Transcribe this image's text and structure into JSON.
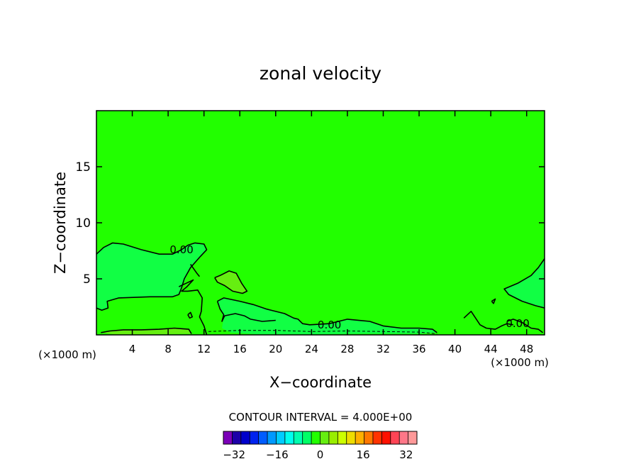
{
  "chart_data": {
    "type": "contour",
    "title": "zonal velocity",
    "xlabel": "X−coordinate",
    "ylabel": "Z−coordinate",
    "x_unit_left": "(×1000 m)",
    "x_unit_right": "(×1000 m)",
    "xlim": [
      0,
      50
    ],
    "ylim": [
      0,
      20
    ],
    "x_ticks": [
      4,
      8,
      12,
      16,
      20,
      24,
      28,
      32,
      36,
      40,
      44,
      48
    ],
    "x_tick_labels": [
      "4",
      "8",
      "12",
      "16",
      "20",
      "24",
      "28",
      "32",
      "36",
      "40",
      "44",
      "48"
    ],
    "y_ticks": [
      5,
      10,
      15
    ],
    "y_tick_labels": [
      "5",
      "10",
      "15"
    ],
    "contour_interval_text": "CONTOUR INTERVAL = 4.000E+00",
    "contour_labels": [
      {
        "text": "0.00",
        "x": 9.5,
        "y": 7.6
      },
      {
        "text": "0.00",
        "x": 26.0,
        "y": 0.9
      },
      {
        "text": "0.00",
        "x": 47.0,
        "y": 1.0
      }
    ],
    "field_colors": {
      "background_0_to_4": "#22ff00",
      "band_minus4_to_0": "#11ff44",
      "band_4_to_8": "#66ee11",
      "band_8_to_12": "#99ee00"
    },
    "regions": [
      {
        "level": "-4..0",
        "points": [
          [
            0,
            7.2
          ],
          [
            0.8,
            7.8
          ],
          [
            1.8,
            8.2
          ],
          [
            3,
            8.1
          ],
          [
            5,
            7.6
          ],
          [
            7,
            7.2
          ],
          [
            8.5,
            7.2
          ],
          [
            9.5,
            7.6
          ],
          [
            10.2,
            8
          ],
          [
            11,
            8.2
          ],
          [
            12,
            8.1
          ],
          [
            12.3,
            7.6
          ],
          [
            11.6,
            7
          ],
          [
            10.5,
            6
          ],
          [
            9.5,
            4.2
          ],
          [
            9.2,
            3.6
          ],
          [
            8.5,
            3.4
          ],
          [
            6,
            3.4
          ],
          [
            2.5,
            3.3
          ],
          [
            1.2,
            3
          ],
          [
            1.3,
            2.4
          ],
          [
            0.6,
            2.2
          ],
          [
            0,
            2.4
          ]
        ]
      },
      {
        "level": "-4..0",
        "points": [
          [
            50,
            6.8
          ],
          [
            49.3,
            6
          ],
          [
            48.5,
            5.3
          ],
          [
            47,
            4.6
          ],
          [
            45.5,
            4.1
          ],
          [
            46,
            3.6
          ],
          [
            47.5,
            3
          ],
          [
            49,
            2.6
          ],
          [
            50,
            2.4
          ]
        ]
      },
      {
        "level": "-4..0",
        "points": [
          [
            13.5,
            3
          ],
          [
            14.2,
            3.3
          ],
          [
            16,
            3
          ],
          [
            17.5,
            2.7
          ],
          [
            19,
            2.3
          ],
          [
            21,
            1.9
          ],
          [
            22,
            1.5
          ],
          [
            22.5,
            1.4
          ],
          [
            23,
            1.0
          ],
          [
            23.8,
            0.9
          ],
          [
            26,
            1.0
          ],
          [
            28,
            1.4
          ],
          [
            30.5,
            1.2
          ],
          [
            32,
            0.8
          ],
          [
            34,
            0.6
          ],
          [
            36,
            0.6
          ],
          [
            37.5,
            0.5
          ],
          [
            38,
            0.2
          ],
          [
            36,
            0.1
          ],
          [
            30,
            0.1
          ],
          [
            24,
            0.05
          ],
          [
            18,
            0.05
          ],
          [
            15,
            0.2
          ],
          [
            14,
            0.6
          ],
          [
            14.2,
            1.5
          ],
          [
            13.8,
            2.3
          ]
        ]
      },
      {
        "level": "4..8",
        "points": [
          [
            13.2,
            5.1
          ],
          [
            13.8,
            5.3
          ],
          [
            14.8,
            5.7
          ],
          [
            15.6,
            5.5
          ],
          [
            16.2,
            4.6
          ],
          [
            16.8,
            3.9
          ],
          [
            16.3,
            3.7
          ],
          [
            15.2,
            3.9
          ],
          [
            14.3,
            4.4
          ],
          [
            13.5,
            4.7
          ]
        ]
      },
      {
        "level": "4..8",
        "points": [
          [
            0.5,
            0.2
          ],
          [
            1.5,
            0.35
          ],
          [
            3,
            0.45
          ],
          [
            5,
            0.45
          ],
          [
            7,
            0.5
          ],
          [
            8.7,
            0.6
          ],
          [
            9.5,
            0.55
          ],
          [
            10.3,
            0.5
          ],
          [
            10.6,
            0.1
          ],
          [
            6,
            0.05
          ],
          [
            2,
            0.05
          ]
        ]
      }
    ],
    "contour_lines": [
      {
        "points": [
          [
            0,
            7.2
          ],
          [
            0.8,
            7.8
          ],
          [
            1.8,
            8.2
          ],
          [
            3,
            8.1
          ],
          [
            5,
            7.6
          ],
          [
            7,
            7.2
          ],
          [
            8.5,
            7.2
          ],
          [
            9.5,
            7.6
          ],
          [
            10.2,
            8
          ],
          [
            11,
            8.2
          ],
          [
            12,
            8.1
          ],
          [
            12.3,
            7.6
          ],
          [
            11.6,
            7
          ],
          [
            10.5,
            6
          ],
          [
            9.8,
            5
          ],
          [
            9.5,
            4.2
          ],
          [
            9.2,
            3.6
          ],
          [
            8.5,
            3.4
          ],
          [
            6,
            3.4
          ],
          [
            2.5,
            3.3
          ],
          [
            1.2,
            3
          ],
          [
            1.3,
            2.4
          ],
          [
            0.6,
            2.2
          ],
          [
            0,
            2.4
          ]
        ]
      },
      {
        "points": [
          [
            10.5,
            6.3
          ],
          [
            11.2,
            5.5
          ],
          [
            11.5,
            5.2
          ]
        ]
      },
      {
        "points": [
          [
            9.2,
            4.3
          ],
          [
            10,
            4.6
          ],
          [
            10.8,
            4.9
          ],
          [
            10.1,
            4.3
          ],
          [
            9.5,
            3.9
          ],
          [
            10.2,
            3.9
          ],
          [
            11.3,
            4
          ],
          [
            11.8,
            3.3
          ],
          [
            11.7,
            2.1
          ],
          [
            11.5,
            1.6
          ],
          [
            12,
            0.8
          ],
          [
            12.3,
            0
          ]
        ]
      },
      {
        "points": [
          [
            13.5,
            3
          ],
          [
            14.2,
            3.3
          ],
          [
            16,
            3
          ],
          [
            17.5,
            2.7
          ],
          [
            19,
            2.3
          ],
          [
            21,
            1.9
          ],
          [
            22,
            1.5
          ],
          [
            22.5,
            1.4
          ],
          [
            23,
            1.0
          ],
          [
            23.8,
            0.9
          ],
          [
            26,
            1.0
          ],
          [
            28,
            1.4
          ],
          [
            30.5,
            1.2
          ],
          [
            32,
            0.8
          ],
          [
            34,
            0.6
          ],
          [
            36,
            0.6
          ],
          [
            37.5,
            0.5
          ],
          [
            38,
            0.2
          ]
        ]
      },
      {
        "points": [
          [
            13.5,
            3
          ],
          [
            13.8,
            2.3
          ],
          [
            14.2,
            1.8
          ],
          [
            14,
            1.2
          ],
          [
            14.3,
            1.7
          ],
          [
            15.5,
            1.9
          ],
          [
            16.5,
            1.7
          ],
          [
            17.2,
            1.4
          ],
          [
            18.5,
            1.2
          ],
          [
            20,
            1.3
          ]
        ]
      },
      {
        "points": [
          [
            50,
            6.8
          ],
          [
            49.3,
            6
          ],
          [
            48.5,
            5.3
          ],
          [
            47,
            4.6
          ],
          [
            45.5,
            4.1
          ],
          [
            46,
            3.6
          ],
          [
            47.5,
            3
          ],
          [
            49,
            2.6
          ],
          [
            50,
            2.4
          ]
        ]
      },
      {
        "points": [
          [
            41,
            1.5
          ],
          [
            41.8,
            2.1
          ],
          [
            42.3,
            1.5
          ],
          [
            42.8,
            0.9
          ],
          [
            43.5,
            0.6
          ],
          [
            44.5,
            0.5
          ],
          [
            45.2,
            0.8
          ],
          [
            45.8,
            1.0
          ],
          [
            46.5,
            0.9
          ]
        ]
      },
      {
        "points": [
          [
            44.1,
            3.0
          ],
          [
            44.5,
            3.2
          ],
          [
            44.3,
            2.8
          ],
          [
            44.1,
            3.0
          ]
        ]
      },
      {
        "points": [
          [
            45.8,
            1.2
          ],
          [
            46.5,
            1.4
          ],
          [
            47.5,
            1.1
          ],
          [
            48.5,
            0.6
          ],
          [
            49.3,
            0.5
          ],
          [
            49.8,
            0.2
          ]
        ]
      },
      {
        "points": [
          [
            13.2,
            5.1
          ],
          [
            13.8,
            5.3
          ],
          [
            14.8,
            5.7
          ],
          [
            15.6,
            5.5
          ],
          [
            16.2,
            4.6
          ],
          [
            16.8,
            3.9
          ],
          [
            16.3,
            3.7
          ],
          [
            15.2,
            3.9
          ],
          [
            14.3,
            4.4
          ],
          [
            13.5,
            4.7
          ],
          [
            13.2,
            5.1
          ]
        ]
      },
      {
        "points": [
          [
            10.2,
            1.8
          ],
          [
            10.5,
            2.0
          ],
          [
            10.7,
            1.6
          ],
          [
            10.4,
            1.5
          ],
          [
            10.2,
            1.8
          ]
        ]
      },
      {
        "points": [
          [
            0.5,
            0.2
          ],
          [
            1.5,
            0.35
          ],
          [
            3,
            0.45
          ],
          [
            5,
            0.45
          ],
          [
            7,
            0.5
          ],
          [
            8.7,
            0.6
          ],
          [
            9.5,
            0.55
          ],
          [
            10.3,
            0.5
          ],
          [
            10.6,
            0.1
          ]
        ]
      },
      {
        "dashed": true,
        "points": [
          [
            12.5,
            0.3
          ],
          [
            16,
            0.4
          ],
          [
            20,
            0.4
          ],
          [
            24,
            0.3
          ],
          [
            28,
            0.35
          ],
          [
            32,
            0.3
          ],
          [
            36,
            0.25
          ],
          [
            38,
            0.1
          ]
        ]
      }
    ],
    "colorbar": {
      "ticks": [
        -32,
        -16,
        0,
        16,
        32
      ],
      "tick_labels": [
        "−32",
        "−16",
        "0",
        "16",
        "32"
      ],
      "range": [
        -36,
        36
      ],
      "colors": [
        "#7b00b8",
        "#1d00a8",
        "#0000cc",
        "#0022ee",
        "#005cff",
        "#0099ff",
        "#00ccff",
        "#00ffee",
        "#00ffb0",
        "#00ff66",
        "#22ff00",
        "#66ee11",
        "#99ee00",
        "#ccff00",
        "#eedd00",
        "#ffb000",
        "#ff7700",
        "#ff3300",
        "#ff1100",
        "#ff4455",
        "#ff7788",
        "#ff9999"
      ]
    }
  }
}
